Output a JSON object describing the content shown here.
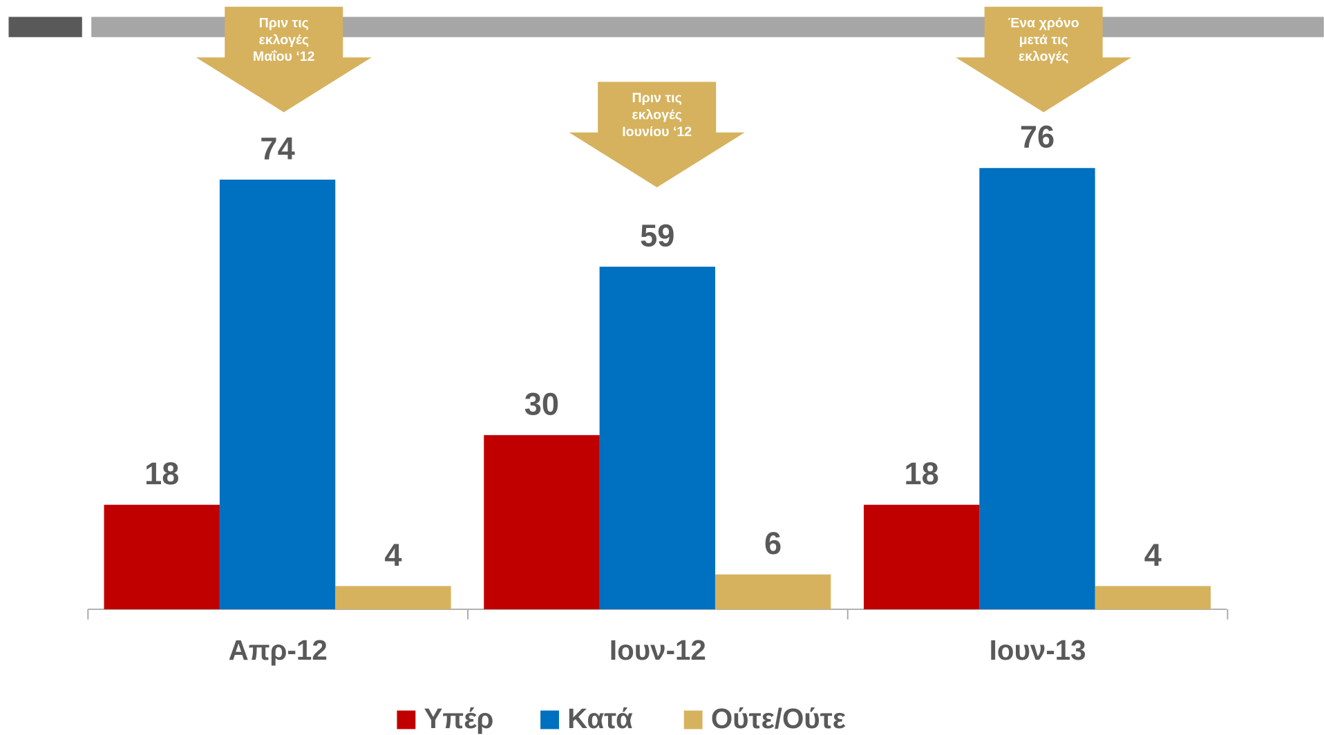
{
  "chart_data": {
    "type": "bar",
    "categories": [
      "Απρ-12",
      "Ιουν-12",
      "Ιουν-13"
    ],
    "series": [
      {
        "name": "Υπέρ",
        "color": "#c00000",
        "values": [
          18,
          30,
          18
        ]
      },
      {
        "name": "Κατά",
        "color": "#0070c0",
        "values": [
          74,
          59,
          76
        ]
      },
      {
        "name": "Ούτε/Ούτε",
        "color": "#d6b25e",
        "values": [
          4,
          6,
          4
        ]
      }
    ],
    "annotations": [
      {
        "lines": [
          "Πριν τις",
          "εκλογές",
          "Μαΐου ‘12"
        ]
      },
      {
        "lines": [
          "Πριν τις",
          "εκλογές",
          "Ιουνίου ‘12"
        ]
      },
      {
        "lines": [
          "Ένα χρόνο",
          "μετά τις",
          "εκλογές"
        ]
      }
    ],
    "annotation_color": "#d6b25e"
  }
}
